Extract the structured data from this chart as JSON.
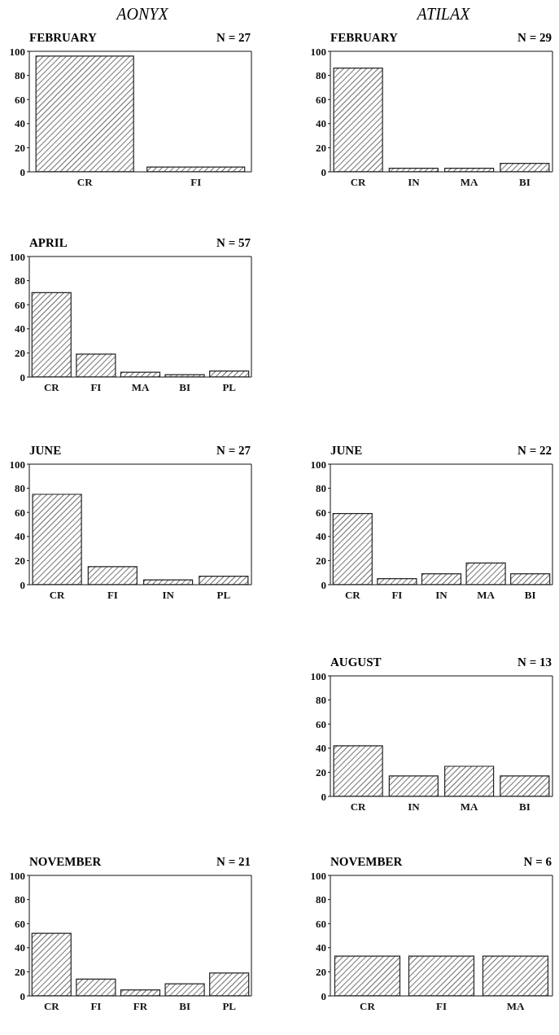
{
  "chart_data": [
    {
      "type": "bar",
      "annotations": [
        "AONYX"
      ],
      "title": "FEBRUARY",
      "subtitle": "N = 27",
      "categories": [
        "CR",
        "FI"
      ],
      "values": [
        96,
        4
      ],
      "color": "#222222",
      "ylim": [
        0,
        100
      ],
      "yticks": [
        0,
        20,
        40,
        60,
        80,
        100
      ],
      "grid": false,
      "legend": false
    },
    {
      "type": "bar",
      "annotations": [
        "ATILAX"
      ],
      "title": "FEBRUARY",
      "subtitle": "N = 29",
      "categories": [
        "CR",
        "IN",
        "MA",
        "BI"
      ],
      "values": [
        86,
        3,
        3,
        7
      ],
      "color": "#222222",
      "ylim": [
        0,
        100
      ],
      "yticks": [
        0,
        20,
        40,
        60,
        80,
        100
      ],
      "grid": false,
      "legend": false
    },
    {
      "type": "bar",
      "title": "APRIL",
      "subtitle": "N = 57",
      "categories": [
        "CR",
        "FI",
        "MA",
        "BI",
        "PL"
      ],
      "values": [
        70,
        19,
        4,
        2,
        5
      ],
      "color": "#222222",
      "ylim": [
        0,
        100
      ],
      "yticks": [
        0,
        20,
        40,
        60,
        80,
        100
      ],
      "grid": false,
      "legend": false
    },
    {
      "type": "bar",
      "title": "JUNE",
      "subtitle": "N = 27",
      "categories": [
        "CR",
        "FI",
        "IN",
        "PL"
      ],
      "values": [
        75,
        15,
        4,
        7
      ],
      "color": "#222222",
      "ylim": [
        0,
        100
      ],
      "yticks": [
        0,
        20,
        40,
        60,
        80,
        100
      ],
      "grid": false,
      "legend": false
    },
    {
      "type": "bar",
      "title": "JUNE",
      "subtitle": "N = 22",
      "categories": [
        "CR",
        "FI",
        "IN",
        "MA",
        "BI"
      ],
      "values": [
        59,
        5,
        9,
        18,
        9
      ],
      "color": "#222222",
      "ylim": [
        0,
        100
      ],
      "yticks": [
        0,
        20,
        40,
        60,
        80,
        100
      ],
      "grid": false,
      "legend": false
    },
    {
      "type": "bar",
      "title": "AUGUST",
      "subtitle": "N = 13",
      "categories": [
        "CR",
        "IN",
        "MA",
        "BI"
      ],
      "values": [
        42,
        17,
        25,
        17
      ],
      "color": "#222222",
      "ylim": [
        0,
        100
      ],
      "yticks": [
        0,
        20,
        40,
        60,
        80,
        100
      ],
      "grid": false,
      "legend": false
    },
    {
      "type": "bar",
      "title": "NOVEMBER",
      "subtitle": "N = 21",
      "categories": [
        "CR",
        "FI",
        "FR",
        "BI",
        "PL"
      ],
      "values": [
        52,
        14,
        5,
        10,
        19
      ],
      "color": "#222222",
      "ylim": [
        0,
        100
      ],
      "yticks": [
        0,
        20,
        40,
        60,
        80,
        100
      ],
      "grid": false,
      "legend": false
    },
    {
      "type": "bar",
      "title": "NOVEMBER",
      "subtitle": "N = 6",
      "categories": [
        "CR",
        "FI",
        "MA"
      ],
      "values": [
        33,
        33,
        33
      ],
      "color": "#222222",
      "ylim": [
        0,
        100
      ],
      "yticks": [
        0,
        20,
        40,
        60,
        80,
        100
      ],
      "grid": false,
      "legend": false
    }
  ]
}
